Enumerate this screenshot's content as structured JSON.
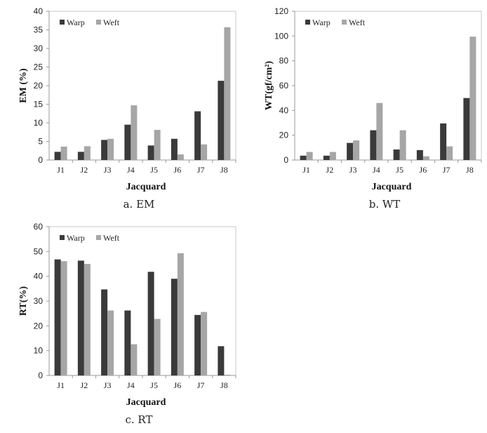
{
  "colors": {
    "warp": "#3a3a3a",
    "weft": "#a6a6a6",
    "axis": "#999999"
  },
  "chart_data": [
    {
      "type": "bar",
      "caption": "a. EM",
      "xlabel": "Jacquard",
      "ylabel": "EM (%)",
      "ylim": [
        0,
        40
      ],
      "yticks": [
        0,
        5,
        10,
        15,
        20,
        25,
        30,
        35,
        40
      ],
      "legend": "top-left",
      "grid": false,
      "categories": [
        "J1",
        "J2",
        "J3",
        "J4",
        "J5",
        "J6",
        "J7",
        "J8"
      ],
      "series": [
        {
          "name": "Warp",
          "values": [
            2.2,
            2.2,
            5.4,
            9.5,
            3.9,
            5.7,
            13.1,
            21.3
          ]
        },
        {
          "name": "Weft",
          "values": [
            3.6,
            3.7,
            5.7,
            14.7,
            8.1,
            1.5,
            4.2,
            35.7
          ]
        }
      ]
    },
    {
      "type": "bar",
      "caption": "b. WT",
      "xlabel": "Jacquard",
      "ylabel": "WT(gf/cm²)",
      "ylim": [
        0,
        120
      ],
      "yticks": [
        0,
        20,
        40,
        60,
        80,
        100,
        120
      ],
      "legend": "top-left",
      "grid": false,
      "categories": [
        "J1",
        "J2",
        "J3",
        "J4",
        "J5",
        "J6",
        "J7",
        "J8"
      ],
      "series": [
        {
          "name": "Warp",
          "values": [
            3.5,
            3.5,
            13.8,
            24,
            8.5,
            8,
            29.5,
            50
          ]
        },
        {
          "name": "Weft",
          "values": [
            6.5,
            6.5,
            15.8,
            46,
            24,
            3,
            11,
            99.5
          ]
        }
      ]
    },
    {
      "type": "bar",
      "caption": "c. RT",
      "xlabel": "Jacquard",
      "ylabel": "RT(%)",
      "ylim": [
        0,
        60
      ],
      "yticks": [
        0,
        10,
        20,
        30,
        40,
        50,
        60
      ],
      "legend": "top-left",
      "grid": false,
      "categories": [
        "J1",
        "J2",
        "J3",
        "J4",
        "J5",
        "J6",
        "J7",
        "J8"
      ],
      "series": [
        {
          "name": "Warp",
          "values": [
            46.8,
            46.3,
            34.7,
            26.2,
            41.8,
            39,
            24.4,
            11.8
          ]
        },
        {
          "name": "Weft",
          "values": [
            46.1,
            45,
            26.2,
            12.6,
            22.8,
            49.3,
            25.6,
            0.3
          ]
        }
      ]
    }
  ]
}
